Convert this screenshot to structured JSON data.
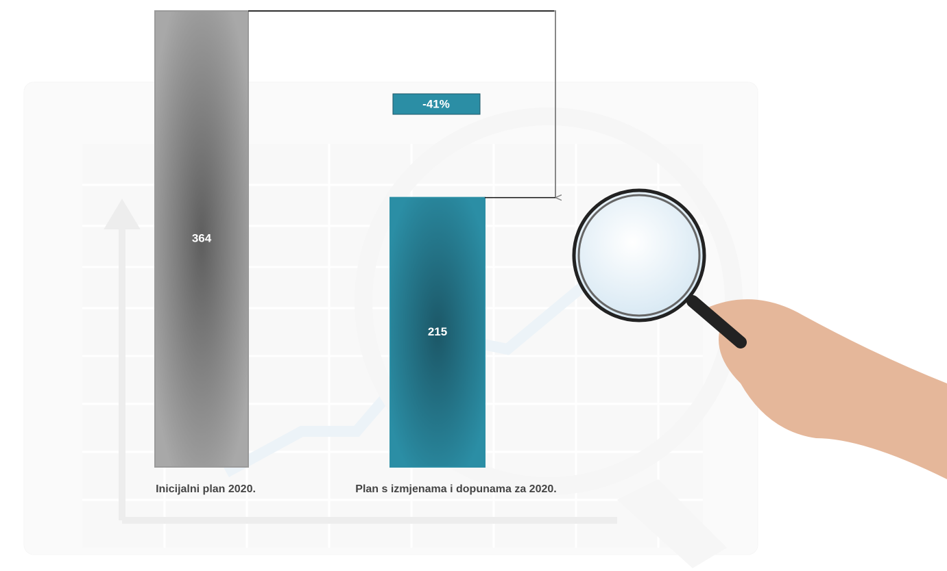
{
  "chart_data": {
    "type": "bar",
    "categories": [
      "Inicijalni plan 2020.",
      "Plan s izmjenama i dopunama za 2020."
    ],
    "values": [
      364,
      215
    ],
    "colors": [
      "#9a9a9a",
      "#2b8ea5"
    ],
    "annotation": "-41%",
    "annotation_color": "#2b8ea5"
  }
}
